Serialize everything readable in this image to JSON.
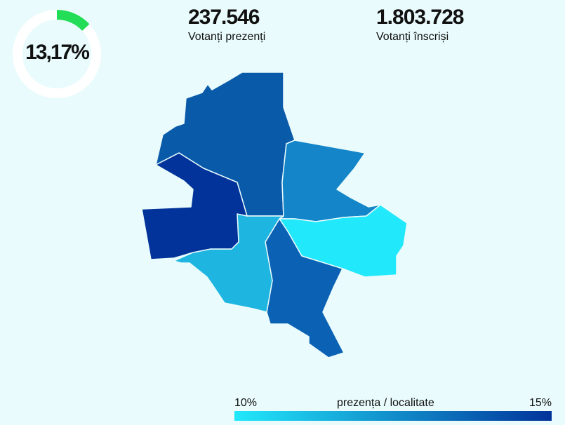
{
  "turnout": {
    "percent_label": "13,17%",
    "fraction": 0.1317,
    "track_color": "#ffffff",
    "fill_color": "#22dd55"
  },
  "stats": {
    "present_value": "237.546",
    "present_label": "Votanți prezenți",
    "registered_value": "1.803.728",
    "registered_label": "Votanți înscriși"
  },
  "map": {
    "sectors": [
      {
        "id": "sector-1",
        "color": "#0a5aaa"
      },
      {
        "id": "sector-2",
        "color": "#1385c8"
      },
      {
        "id": "sector-3",
        "color": "#22e8fb"
      },
      {
        "id": "sector-4",
        "color": "#0b62b4"
      },
      {
        "id": "sector-5",
        "color": "#1eb5e0"
      },
      {
        "id": "sector-6",
        "color": "#01339a"
      }
    ]
  },
  "legend": {
    "min_label": "10%",
    "max_label": "15%",
    "title": "prezența / localitate",
    "color_low": "#22e8fb",
    "color_high": "#01339a"
  }
}
